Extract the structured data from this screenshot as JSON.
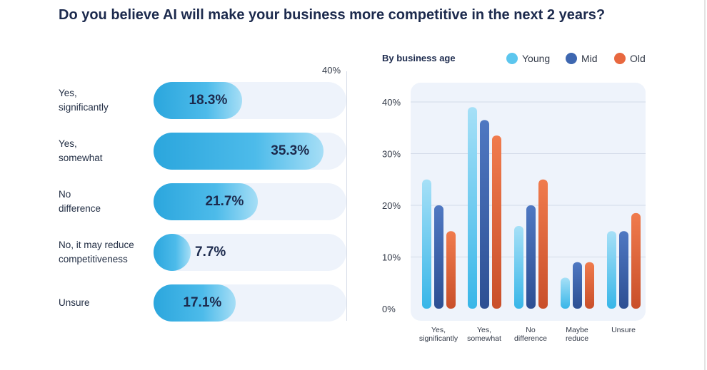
{
  "title": "Do you believe AI will make your business more competitive in the next 2 years?",
  "colors": {
    "young": "#5cc6ee",
    "mid": "#3e67b0",
    "old": "#e8683f",
    "title": "#1c2a4d"
  },
  "chart_data": [
    {
      "type": "bar",
      "orientation": "horizontal",
      "title": "",
      "axis_max_label": "40%",
      "xlim": [
        0,
        40
      ],
      "categories": [
        "Yes,\nsignificantly",
        "Yes,\nsomewhat",
        "No\ndifference",
        "No, it may reduce\ncompetitiveness",
        "Unsure"
      ],
      "values": [
        18.3,
        35.3,
        21.7,
        7.7,
        17.1
      ],
      "value_labels": [
        "18.3%",
        "35.3%",
        "21.7%",
        "7.7%",
        "17.1%"
      ]
    },
    {
      "type": "bar",
      "orientation": "vertical",
      "title": "By business age",
      "ylabel": "",
      "ylim": [
        0,
        40
      ],
      "yticks": [
        0,
        10,
        20,
        30,
        40
      ],
      "ytick_labels": [
        "0%",
        "10%",
        "20%",
        "30%",
        "40%"
      ],
      "categories": [
        "Yes,\nsignificantly",
        "Yes,\nsomewhat",
        "No\ndifference",
        "Maybe\nreduce",
        "Unsure"
      ],
      "legend": [
        "Young",
        "Mid",
        "Old"
      ],
      "legend_position": "top-right",
      "series": [
        {
          "name": "Young",
          "values": [
            25,
            39,
            16,
            6,
            15
          ]
        },
        {
          "name": "Mid",
          "values": [
            20,
            36.5,
            20,
            9,
            15
          ]
        },
        {
          "name": "Old",
          "values": [
            15,
            33.5,
            25,
            9,
            18.5
          ]
        }
      ]
    }
  ]
}
